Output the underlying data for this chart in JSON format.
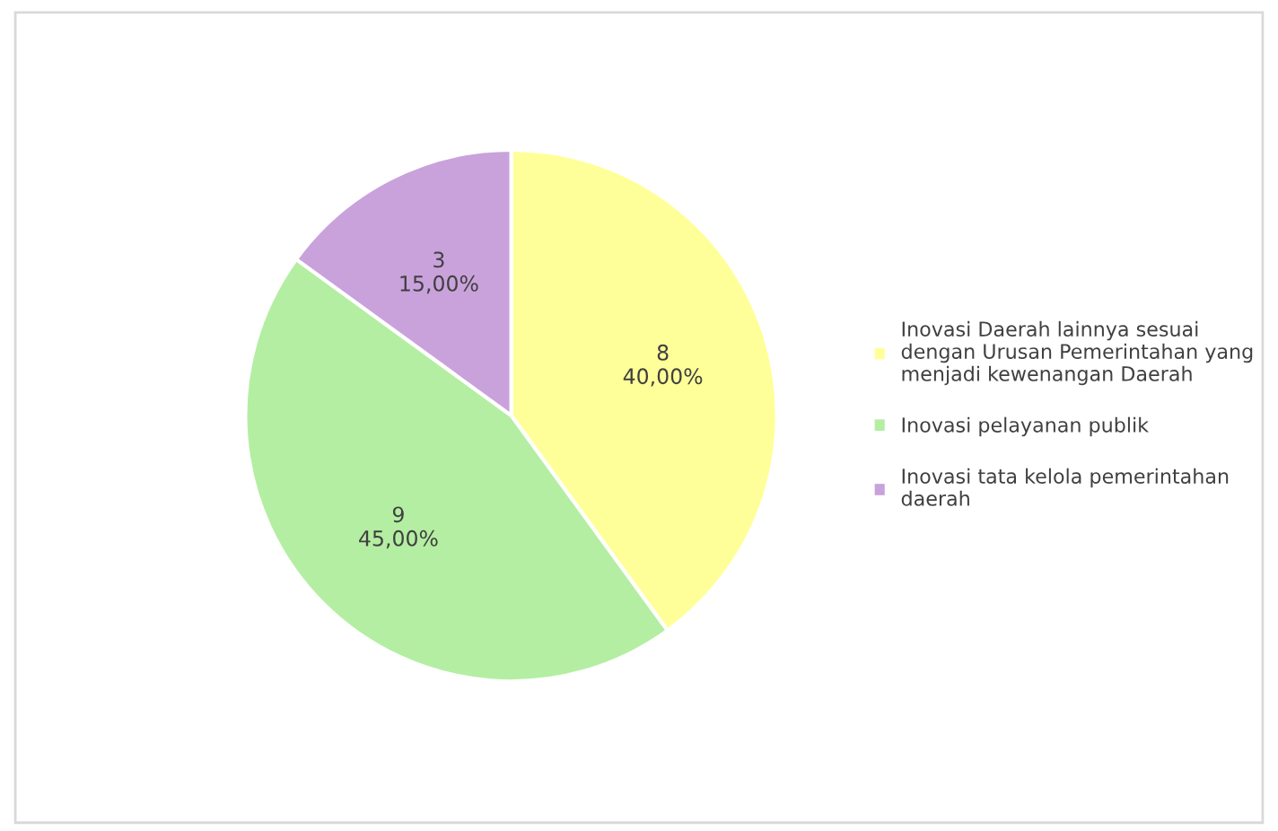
{
  "chart_data": {
    "type": "pie",
    "categories": [
      "Inovasi Daerah lainnya sesuai\ndengan Urusan Pemerintahan yang\nmenjadi kewenangan Daerah",
      "Inovasi pelayanan publik",
      "Inovasi tata kelola pemerintahan\ndaerah"
    ],
    "values": [
      8,
      9,
      3
    ],
    "colors": [
      "#ffff99",
      "#b4eea2",
      "#c9a2dc"
    ],
    "value_labels": [
      "8\n40,00%",
      "9\n45,00%",
      "3\n15,00%"
    ],
    "legend": "right"
  }
}
